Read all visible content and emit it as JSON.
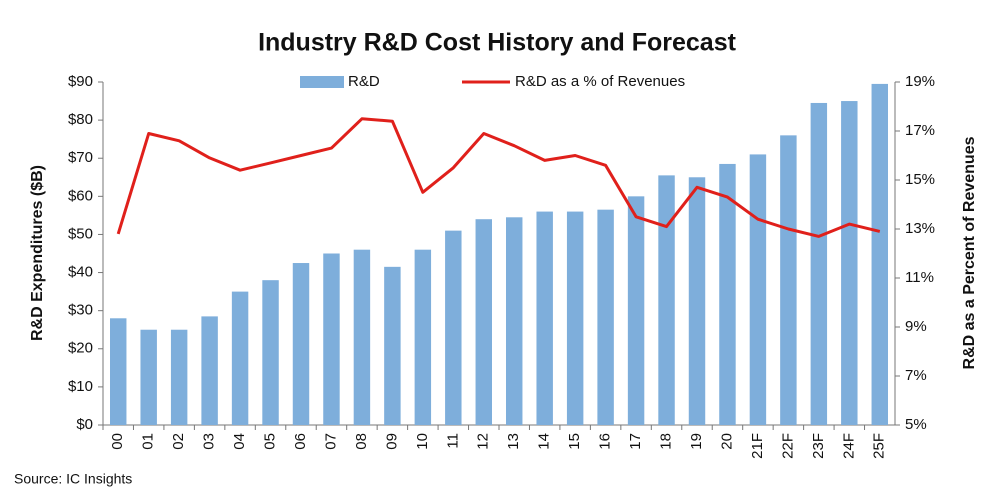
{
  "chart_data": {
    "type": "bar",
    "title": "Industry R&D Cost History and Forecast",
    "ylabel": "R&D Expenditures ($B)",
    "y2label": "R&D as a Percent of Revenues",
    "source": "Source: IC Insights",
    "categories": [
      "00",
      "01",
      "02",
      "03",
      "04",
      "05",
      "06",
      "07",
      "08",
      "09",
      "10",
      "11",
      "12",
      "13",
      "14",
      "15",
      "16",
      "17",
      "18",
      "19",
      "20",
      "21F",
      "22F",
      "23F",
      "24F",
      "25F"
    ],
    "series": [
      {
        "name": "R&D",
        "type": "bar",
        "axis": "y",
        "color": "#7eaedb",
        "values": [
          28,
          25,
          25,
          28.5,
          35,
          38,
          42.5,
          45,
          46,
          41.5,
          46,
          51,
          54,
          54.5,
          56,
          56,
          56.5,
          60,
          65.5,
          65,
          68.5,
          71,
          76,
          84.5,
          85,
          89.5
        ]
      },
      {
        "name": "R&D as a % of Revenues",
        "type": "line",
        "axis": "y2",
        "color": "#e0201b",
        "values": [
          12.8,
          16.9,
          16.6,
          15.9,
          15.4,
          15.7,
          16.0,
          16.3,
          17.5,
          17.4,
          14.5,
          15.5,
          16.9,
          16.4,
          15.8,
          16.0,
          15.6,
          13.5,
          13.1,
          14.7,
          14.3,
          13.4,
          13.0,
          12.7,
          13.2,
          12.9
        ]
      }
    ],
    "ylim": [
      0,
      90
    ],
    "yticks": [
      {
        "value": 0,
        "label": "$0"
      },
      {
        "value": 10,
        "label": "$10"
      },
      {
        "value": 20,
        "label": "$20"
      },
      {
        "value": 30,
        "label": "$30"
      },
      {
        "value": 40,
        "label": "$40"
      },
      {
        "value": 50,
        "label": "$50"
      },
      {
        "value": 60,
        "label": "$60"
      },
      {
        "value": 70,
        "label": "$70"
      },
      {
        "value": 80,
        "label": "$80"
      },
      {
        "value": 90,
        "label": "$90"
      }
    ],
    "y2lim": [
      5,
      19
    ],
    "y2ticks": [
      {
        "value": 5,
        "label": "5%"
      },
      {
        "value": 7,
        "label": "7%"
      },
      {
        "value": 9,
        "label": "9%"
      },
      {
        "value": 11,
        "label": "11%"
      },
      {
        "value": 13,
        "label": "13%"
      },
      {
        "value": 15,
        "label": "15%"
      },
      {
        "value": 17,
        "label": "17%"
      },
      {
        "value": 19,
        "label": "19%"
      }
    ],
    "grid": false
  }
}
